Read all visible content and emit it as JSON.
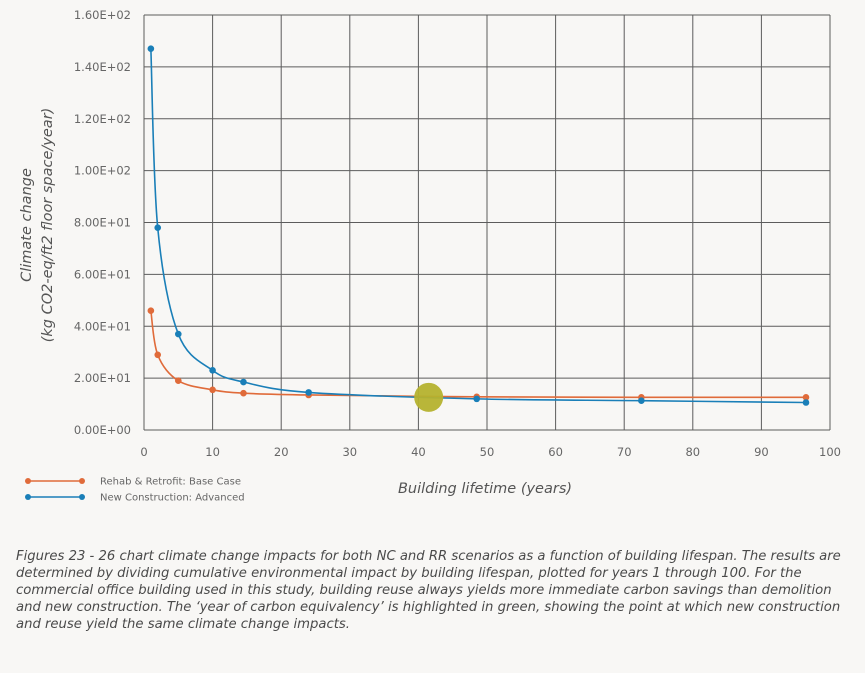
{
  "chart_data": {
    "type": "line",
    "xlabel": "Building lifetime (years)",
    "ylabel_lines": [
      "Climate change",
      "(kg CO2-eq/ft2 floor space/year)"
    ],
    "xlim": [
      0,
      100
    ],
    "ylim": [
      0,
      160
    ],
    "x_ticks": [
      0,
      10,
      20,
      30,
      40,
      50,
      60,
      70,
      80,
      90,
      100
    ],
    "x_tick_labels": [
      "0",
      "10",
      "20",
      "30",
      "40",
      "50",
      "60",
      "70",
      "80",
      "90",
      "100"
    ],
    "y_ticks": [
      0,
      20,
      40,
      60,
      80,
      100,
      120,
      140,
      160
    ],
    "y_tick_labels": [
      "0.00E+00",
      "2.00E+01",
      "4.00E+01",
      "6.00E+01",
      "8.00E+01",
      "1.00E+02",
      "1.20E+02",
      "1.40E+02",
      "1.60E+02"
    ],
    "grid": true,
    "legend_position": "bottom-left",
    "series": [
      {
        "name": "Rehab & Retrofit: Base Case",
        "color": "#e06b3a",
        "points": [
          [
            1,
            46
          ],
          [
            2,
            29
          ],
          [
            5,
            19
          ],
          [
            10,
            15.5
          ],
          [
            14.5,
            14.2
          ],
          [
            24,
            13.5
          ],
          [
            48.5,
            12.8
          ],
          [
            72.5,
            12.6
          ],
          [
            96.5,
            12.6
          ]
        ]
      },
      {
        "name": "New Construction: Advanced",
        "color": "#1a7fb8",
        "points": [
          [
            1,
            147
          ],
          [
            2,
            78
          ],
          [
            5,
            37
          ],
          [
            10,
            23
          ],
          [
            14.5,
            18.5
          ],
          [
            24,
            14.5
          ],
          [
            48.5,
            12
          ],
          [
            72.5,
            11.3
          ],
          [
            96.5,
            10.6
          ]
        ]
      }
    ],
    "highlight": {
      "x": 41.5,
      "y": 12.6,
      "color": "#b5b22e"
    }
  },
  "caption": "Figures 23 - 26 chart climate change impacts for both NC and RR scenarios as a function of building lifespan. The results are determined by dividing cumulative environmental impact by building lifespan, plotted for years 1 through 100. For the commercial office building used in this study, building reuse always yields more immediate carbon savings than demolition and new construction. The ‘year of carbon equivalency’ is highlighted in green, showing the point at which new construction and reuse yield the same climate change impacts."
}
